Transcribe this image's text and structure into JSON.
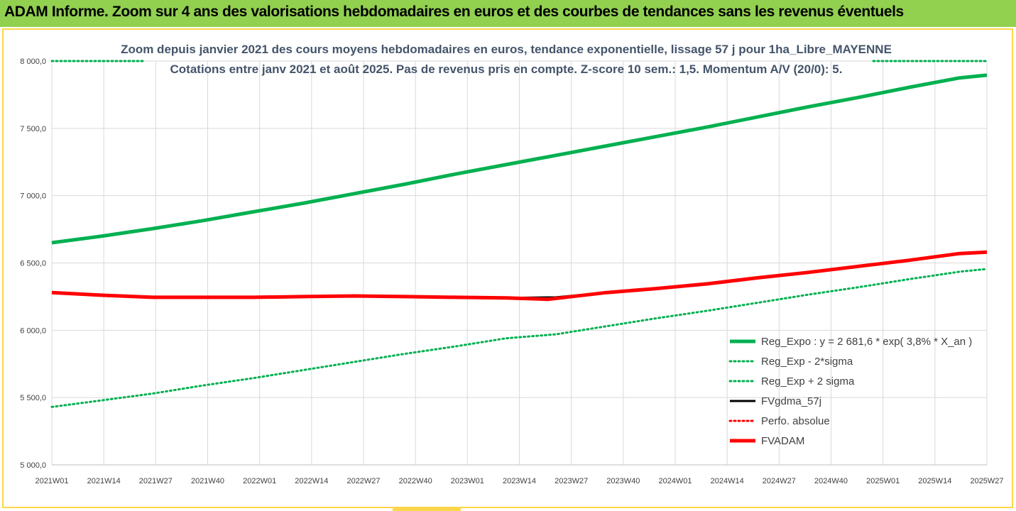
{
  "banner": {
    "title": "ADAM Informe. Zoom sur 4 ans des valorisations hebdomadaires en euros et des courbes de tendances sans les revenus éventuels"
  },
  "colors": {
    "banner_bg": "#92d050",
    "frame_border": "#ffd54a",
    "trend": "#00b050",
    "band_dotted": "#00b050",
    "fvgdma": "#000000",
    "perfo": "#ff0000",
    "fvadam": "#ff0000"
  },
  "chart_data": {
    "type": "line",
    "title_line1": "Zoom depuis janvier 2021 des cours moyens hebdomadaires en euros, tendance exponentielle, lissage 57 j pour 1ha_Libre_MAYENNE",
    "title_line2": "Cotations entre janv 2021 et août 2025.  Pas de revenus pris en compte. Z-score 10 sem.: 1,5. Momentum A/V (20/0): 5.",
    "x_tick_labels": [
      "2021W01",
      "2021W14",
      "2021W27",
      "2021W40",
      "2022W01",
      "2022W14",
      "2022W27",
      "2022W40",
      "2023W01",
      "2023W14",
      "2023W27",
      "2023W40",
      "2024W01",
      "2024W14",
      "2024W27",
      "2024W40",
      "2025W01",
      "2025W14",
      "2025W27"
    ],
    "y_tick_labels": [
      "5 000,0",
      "5 500,0",
      "6 000,0",
      "6 500,0",
      "7 000,0",
      "7 500,0",
      "8 000,0"
    ],
    "ylim": [
      5000,
      8000
    ],
    "xlim_weeks": [
      0,
      241
    ],
    "grid": true,
    "legend_position": "bottom-right",
    "series": [
      {
        "name": "Reg_Expo : y = 2 681,6 * exp( 3,8% *  X_an )",
        "style": "solid-thick",
        "color": "#00b050",
        "points": [
          [
            0,
            6650
          ],
          [
            13,
            6700
          ],
          [
            26,
            6755
          ],
          [
            39,
            6815
          ],
          [
            52,
            6880
          ],
          [
            65,
            6945
          ],
          [
            78,
            7015
          ],
          [
            91,
            7085
          ],
          [
            104,
            7160
          ],
          [
            117,
            7230
          ],
          [
            130,
            7300
          ],
          [
            143,
            7370
          ],
          [
            156,
            7440
          ],
          [
            169,
            7510
          ],
          [
            182,
            7585
          ],
          [
            195,
            7660
          ],
          [
            208,
            7730
          ],
          [
            221,
            7805
          ],
          [
            234,
            7875
          ],
          [
            241,
            7895
          ]
        ]
      },
      {
        "name": "Reg_Exp - 2*sigma",
        "style": "dotted",
        "color": "#00b050",
        "points": [
          [
            0,
            5430
          ],
          [
            13,
            5480
          ],
          [
            26,
            5530
          ],
          [
            39,
            5590
          ],
          [
            52,
            5645
          ],
          [
            65,
            5705
          ],
          [
            78,
            5765
          ],
          [
            91,
            5825
          ],
          [
            104,
            5880
          ],
          [
            117,
            5940
          ],
          [
            130,
            5970
          ],
          [
            143,
            6030
          ],
          [
            156,
            6090
          ],
          [
            169,
            6145
          ],
          [
            182,
            6205
          ],
          [
            195,
            6265
          ],
          [
            208,
            6320
          ],
          [
            221,
            6380
          ],
          [
            234,
            6435
          ],
          [
            241,
            6455
          ]
        ]
      },
      {
        "name": "Reg_Exp + 2 sigma",
        "style": "dotted",
        "color": "#00b050",
        "points": [
          [
            0,
            8000
          ],
          [
            241,
            8000
          ]
        ]
      },
      {
        "name": "FVgdma_57j",
        "style": "solid-medium",
        "color": "#000000",
        "points": [
          [
            0,
            6280
          ],
          [
            13,
            6260
          ],
          [
            26,
            6245
          ],
          [
            39,
            6245
          ],
          [
            52,
            6245
          ],
          [
            65,
            6250
          ],
          [
            78,
            6255
          ],
          [
            91,
            6250
          ],
          [
            104,
            6245
          ],
          [
            117,
            6240
          ],
          [
            130,
            6245
          ],
          [
            143,
            6280
          ],
          [
            156,
            6310
          ],
          [
            169,
            6345
          ],
          [
            182,
            6390
          ],
          [
            195,
            6430
          ],
          [
            208,
            6475
          ],
          [
            221,
            6520
          ],
          [
            234,
            6570
          ],
          [
            241,
            6580
          ]
        ]
      },
      {
        "name": "Perfo. absolue",
        "style": "dotted",
        "color": "#ff0000",
        "points": []
      },
      {
        "name": "FVADAM",
        "style": "solid-thick",
        "color": "#ff0000",
        "points": [
          [
            0,
            6280
          ],
          [
            13,
            6260
          ],
          [
            26,
            6245
          ],
          [
            39,
            6245
          ],
          [
            52,
            6245
          ],
          [
            65,
            6250
          ],
          [
            78,
            6255
          ],
          [
            91,
            6250
          ],
          [
            104,
            6245
          ],
          [
            117,
            6240
          ],
          [
            128,
            6230
          ],
          [
            143,
            6280
          ],
          [
            156,
            6310
          ],
          [
            169,
            6345
          ],
          [
            182,
            6390
          ],
          [
            195,
            6430
          ],
          [
            208,
            6475
          ],
          [
            221,
            6520
          ],
          [
            234,
            6570
          ],
          [
            241,
            6580
          ]
        ]
      }
    ]
  }
}
